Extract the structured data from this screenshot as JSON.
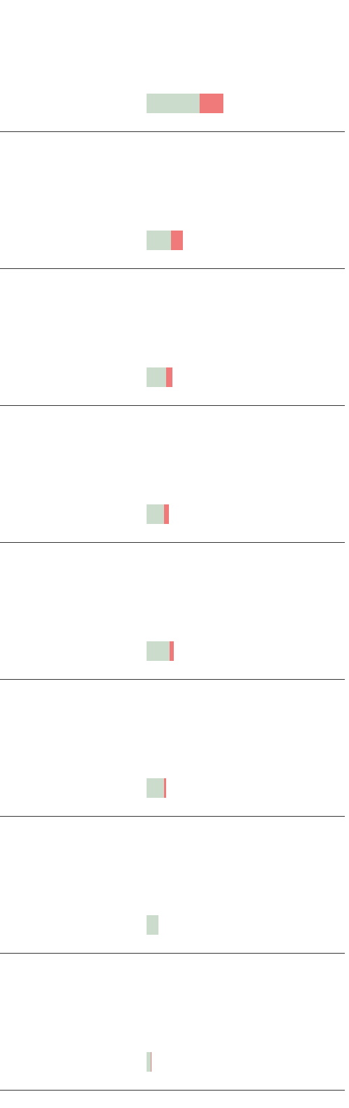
{
  "chart_data": {
    "type": "bar",
    "orientation": "horizontal",
    "stacked": true,
    "title": "",
    "xlabel": "",
    "ylabel": "",
    "categories": [
      "",
      "",
      "",
      "",
      "",
      "",
      "",
      ""
    ],
    "series": [
      {
        "color": "#ccdccc",
        "values": [
          76,
          35,
          28,
          25,
          33,
          25,
          17,
          6
        ]
      },
      {
        "color": "#f07a7a",
        "values": [
          34,
          17,
          9,
          7,
          6,
          3,
          0,
          1
        ]
      }
    ],
    "xlim": [
      0,
      284
    ],
    "grid": false,
    "legend": "none"
  }
}
